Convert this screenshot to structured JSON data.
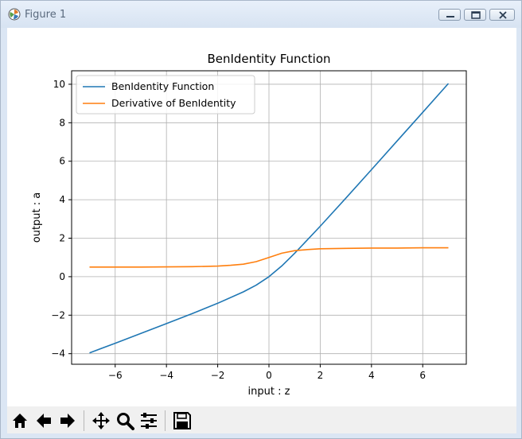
{
  "window": {
    "title": "Figure 1"
  },
  "icons": {
    "app": "matplotlib-icon",
    "minimize": "minimize-icon",
    "maximize": "maximize-icon",
    "close": "close-icon"
  },
  "toolbar": {
    "buttons": [
      {
        "name": "home-icon"
      },
      {
        "name": "back-arrow-icon"
      },
      {
        "name": "forward-arrow-icon"
      },
      {
        "name": "pan-icon"
      },
      {
        "name": "zoom-icon"
      },
      {
        "name": "configure-subplots-icon"
      },
      {
        "name": "save-icon"
      }
    ]
  },
  "chart_data": {
    "type": "line",
    "title": "BenIdentity Function",
    "xlabel": "input : z",
    "ylabel": "output : a",
    "xlim": [
      -7.7,
      7.7
    ],
    "ylim": [
      -4.55,
      10.7
    ],
    "xticks": [
      -6,
      -4,
      -2,
      0,
      2,
      4,
      6
    ],
    "yticks": [
      -4,
      -2,
      0,
      2,
      4,
      6,
      8,
      10
    ],
    "grid": true,
    "legend_position": "upper-left",
    "series": [
      {
        "name": "BenIdentity Function",
        "color": "#1f77b4",
        "x": [
          -7,
          -6,
          -5,
          -4,
          -3,
          -2,
          -1,
          -0.5,
          0,
          0.5,
          1,
          2,
          3,
          4,
          5,
          6,
          7
        ],
        "y": [
          -3.96,
          -3.46,
          -2.95,
          -2.44,
          -1.92,
          -1.38,
          -0.79,
          -0.44,
          0.0,
          0.56,
          1.21,
          2.62,
          4.08,
          5.56,
          7.05,
          8.54,
          10.04
        ]
      },
      {
        "name": "Derivative of BenIdentity",
        "color": "#ff7f0e",
        "x": [
          -7,
          -6,
          -5,
          -4,
          -3,
          -2,
          -1.5,
          -1,
          -0.5,
          0,
          0.5,
          1,
          1.5,
          2,
          3,
          4,
          5,
          6,
          7
        ],
        "y": [
          0.5,
          0.5,
          0.5,
          0.51,
          0.52,
          0.55,
          0.59,
          0.65,
          0.78,
          1.0,
          1.22,
          1.35,
          1.41,
          1.45,
          1.47,
          1.49,
          1.49,
          1.5,
          1.5
        ]
      }
    ]
  }
}
